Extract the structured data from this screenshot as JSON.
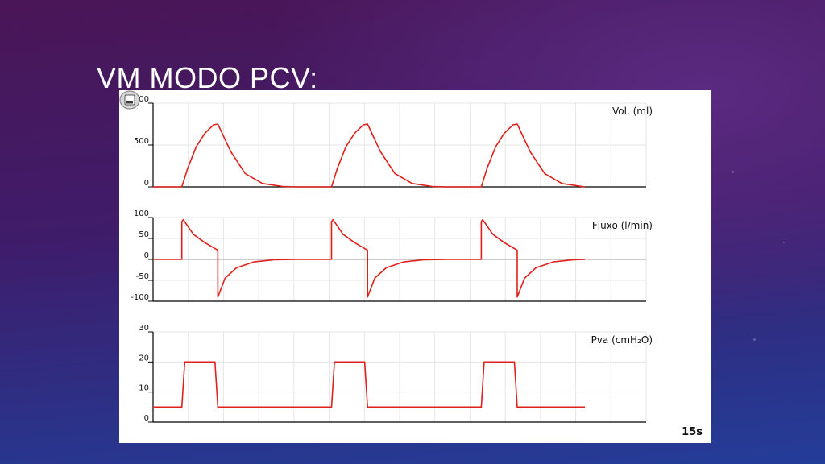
{
  "slide": {
    "title": "VM MODO PCV:"
  },
  "time_window_label": "15s",
  "icons": {
    "save": "disk-save-icon"
  },
  "colors": {
    "trace": "#e0201b",
    "grid": "#e6e6e6",
    "axis": "#000000",
    "zero_line": "#9a9a9a"
  },
  "chart_data": [
    {
      "type": "line",
      "title": "Vol. (ml)",
      "ytick_labels": [
        "1.000",
        "500",
        "0"
      ],
      "ylim": [
        0,
        1000
      ],
      "xlim": [
        0,
        15
      ],
      "grid": true,
      "series": [
        {
          "x": [
            0,
            1.0,
            1.2,
            1.5,
            1.8,
            2.1,
            2.25,
            2.7,
            3.2,
            3.8,
            4.5,
            5.0,
            5.2,
            6.2,
            6.4,
            6.7,
            7.0,
            7.3,
            7.45,
            7.9,
            8.4,
            9.0,
            9.7,
            10.2,
            10.4,
            11.4,
            11.6,
            11.9,
            12.2,
            12.5,
            12.65,
            13.1,
            13.6,
            14.2,
            14.9,
            15.0
          ],
          "y": [
            0,
            0,
            220,
            480,
            640,
            740,
            750,
            420,
            160,
            40,
            5,
            0,
            0,
            0,
            220,
            480,
            640,
            740,
            750,
            420,
            160,
            40,
            5,
            0,
            0,
            0,
            220,
            480,
            640,
            740,
            750,
            420,
            160,
            40,
            5,
            0
          ]
        }
      ]
    },
    {
      "type": "line",
      "title": "Fluxo (l/min)",
      "ytick_labels": [
        "100",
        "50",
        "0",
        "-50",
        "-100"
      ],
      "ylim": [
        -100,
        100
      ],
      "xlim": [
        0,
        15
      ],
      "grid": true,
      "series": [
        {
          "x": [
            0,
            1.0,
            1.0,
            1.05,
            1.4,
            1.8,
            2.25,
            2.25,
            2.5,
            2.9,
            3.5,
            4.2,
            5.0,
            6.2,
            6.2,
            6.25,
            6.6,
            7.0,
            7.45,
            7.45,
            7.7,
            8.1,
            8.7,
            9.4,
            10.2,
            11.4,
            11.4,
            11.45,
            11.8,
            12.2,
            12.65,
            12.65,
            12.9,
            13.3,
            13.9,
            14.6,
            15.0
          ],
          "y": [
            0,
            0,
            90,
            95,
            60,
            40,
            22,
            -90,
            -45,
            -20,
            -6,
            -1,
            0,
            0,
            90,
            95,
            60,
            40,
            22,
            -90,
            -45,
            -20,
            -6,
            -1,
            0,
            0,
            90,
            95,
            60,
            40,
            22,
            -90,
            -45,
            -20,
            -6,
            -1,
            0
          ]
        }
      ]
    },
    {
      "type": "line",
      "title": "Pva (cmH₂O)",
      "ytick_labels": [
        "30",
        "20",
        "10",
        "0"
      ],
      "ylim": [
        0,
        30
      ],
      "xlim": [
        0,
        15
      ],
      "grid": true,
      "series": [
        {
          "x": [
            0,
            1.0,
            1.1,
            2.15,
            2.25,
            6.2,
            6.3,
            7.35,
            7.45,
            11.4,
            11.5,
            12.55,
            12.65,
            15.0
          ],
          "y": [
            5,
            5,
            20,
            20,
            5,
            5,
            20,
            20,
            5,
            5,
            20,
            20,
            5,
            5
          ]
        }
      ]
    }
  ]
}
